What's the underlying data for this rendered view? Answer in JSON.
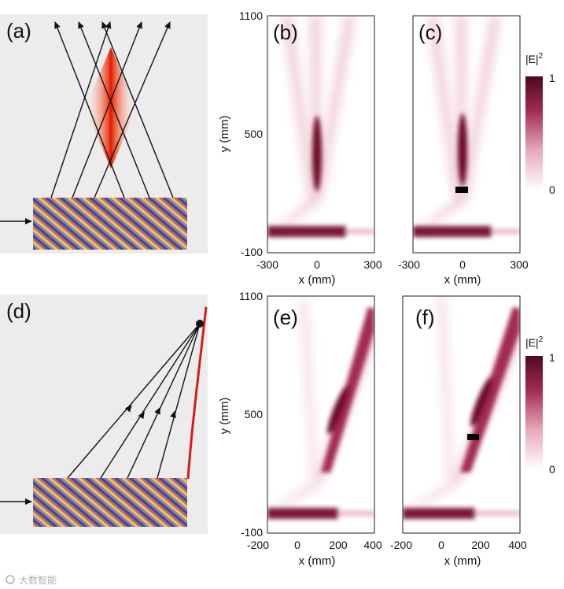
{
  "figure": {
    "panels": {
      "a": {
        "label": "(a)"
      },
      "b": {
        "label": "(b)"
      },
      "c": {
        "label": "(c)"
      },
      "d": {
        "label": "(d)"
      },
      "e": {
        "label": "(e)"
      },
      "f": {
        "label": "(f)"
      }
    },
    "top_row": {
      "y_axis_title": "y (mm)",
      "x_axis_title": "x (mm)",
      "y_ticks": [
        "1100",
        "500",
        "-100"
      ],
      "x_ticks": [
        "-300",
        "0",
        "300"
      ]
    },
    "bottom_row": {
      "y_axis_title": "y (mm)",
      "x_axis_title": "x (mm)",
      "y_ticks": [
        "1100",
        "500",
        "-100"
      ],
      "x_ticks": [
        "-200",
        "0",
        "200",
        "400"
      ]
    },
    "colorbar": {
      "label_main": "|E|",
      "label_sup": "2",
      "max": "1",
      "min": "0",
      "color_high": "#5a0a22",
      "color_low": "#ffffff"
    },
    "colors": {
      "panel_bg": "#ececec",
      "focus_red": "#e8311a",
      "curve_red": "#d81a1a",
      "field_dark": "#6e0b2c"
    },
    "watermark": "大数智能"
  },
  "chart_data": [
    {
      "type": "heatmap",
      "panel": "(b)",
      "xlabel": "x (mm)",
      "ylabel": "y (mm)",
      "xlim": [
        -300,
        300
      ],
      "ylim": [
        -100,
        1100
      ],
      "xticks": [
        -300,
        0,
        300
      ],
      "yticks": [
        -100,
        500,
        1100
      ],
      "colorbar": {
        "label": "|E|^2",
        "range": [
          0,
          1
        ]
      }
    },
    {
      "type": "heatmap",
      "panel": "(c)",
      "xlabel": "x (mm)",
      "xlim": [
        -300,
        300
      ],
      "ylim": [
        -100,
        1100
      ],
      "xticks": [
        -300,
        0,
        300
      ],
      "obstacle": {
        "x": 0,
        "y": 220
      },
      "colorbar": {
        "label": "|E|^2",
        "range": [
          0,
          1
        ]
      }
    },
    {
      "type": "heatmap",
      "panel": "(e)",
      "xlabel": "x (mm)",
      "ylabel": "y (mm)",
      "xlim": [
        -200,
        400
      ],
      "ylim": [
        -100,
        1100
      ],
      "xticks": [
        -200,
        0,
        200,
        400
      ],
      "yticks": [
        -100,
        500,
        1100
      ],
      "colorbar": {
        "label": "|E|^2",
        "range": [
          0,
          1
        ]
      }
    },
    {
      "type": "heatmap",
      "panel": "(f)",
      "xlabel": "x (mm)",
      "xlim": [
        -200,
        400
      ],
      "ylim": [
        -100,
        1100
      ],
      "xticks": [
        -200,
        0,
        200,
        400
      ],
      "obstacle": {
        "x": 150,
        "y": 380
      },
      "colorbar": {
        "label": "|E|^2",
        "range": [
          0,
          1
        ]
      }
    }
  ]
}
